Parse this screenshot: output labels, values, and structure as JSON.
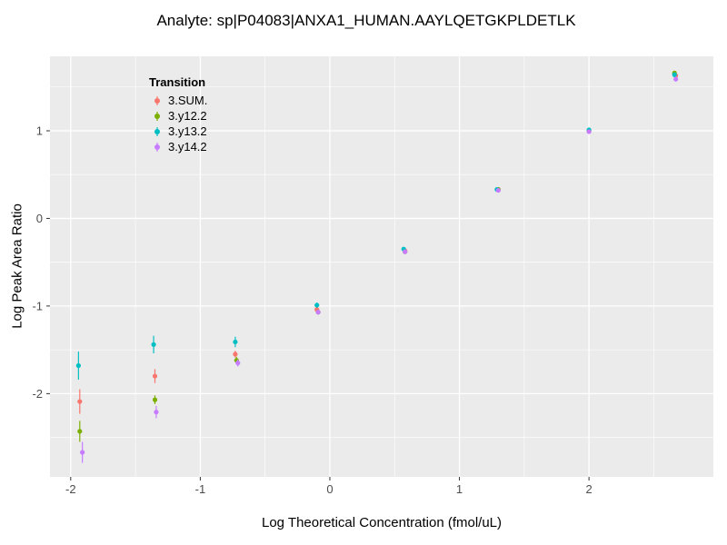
{
  "chart_data": {
    "type": "scatter",
    "title": "Analyte: sp|P04083|ANXA1_HUMAN.AAYLQETGKPLDETLK",
    "xlabel": "Log Theoretical Concentration (fmol/uL)",
    "ylabel": "Log Peak Area Ratio",
    "xlim": [
      -2.16,
      2.96
    ],
    "ylim": [
      -2.95,
      1.85
    ],
    "x_ticks": [
      -2,
      -1,
      0,
      1,
      2
    ],
    "y_ticks": [
      -2,
      -1,
      0,
      1
    ],
    "grid": true,
    "legend": {
      "title": "Transition",
      "position": "top-left-inside"
    },
    "colors": {
      "panel_bg": "#EBEBEB",
      "grid": "#FFFFFF",
      "tick_mark": "#333333",
      "tick_text": "#4D4D4D",
      "text": "#000000"
    },
    "series": [
      {
        "name": "3.SUM.",
        "color": "#F8766D",
        "points": [
          {
            "x": -1.93,
            "y": -2.09,
            "err": 0.14
          },
          {
            "x": -1.35,
            "y": -1.8,
            "err": 0.08
          },
          {
            "x": -0.73,
            "y": -1.55,
            "err": 0.04
          },
          {
            "x": -0.1,
            "y": -1.04,
            "err": 0.03
          },
          {
            "x": 0.58,
            "y": -0.37,
            "err": 0.02
          },
          {
            "x": 1.3,
            "y": 0.33,
            "err": 0.01
          },
          {
            "x": 2.0,
            "y": 1.0,
            "err": 0.01
          },
          {
            "x": 2.67,
            "y": 1.63,
            "err": 0.02
          }
        ]
      },
      {
        "name": "3.y12.2",
        "color": "#7CAE00",
        "points": [
          {
            "x": -1.93,
            "y": -2.43,
            "err": 0.12
          },
          {
            "x": -1.35,
            "y": -2.07,
            "err": 0.05
          },
          {
            "x": -0.72,
            "y": -1.62,
            "err": 0.04
          },
          {
            "x": -0.09,
            "y": -1.07,
            "err": 0.02
          },
          {
            "x": 0.58,
            "y": -0.38,
            "err": 0.02
          },
          {
            "x": 1.3,
            "y": 0.33,
            "err": 0.01
          },
          {
            "x": 2.0,
            "y": 1.0,
            "err": 0.01
          },
          {
            "x": 2.66,
            "y": 1.66,
            "err": 0.02
          }
        ]
      },
      {
        "name": "3.y13.2",
        "color": "#00BFC4",
        "points": [
          {
            "x": -1.94,
            "y": -1.68,
            "err": 0.16
          },
          {
            "x": -1.36,
            "y": -1.44,
            "err": 0.1
          },
          {
            "x": -0.73,
            "y": -1.41,
            "err": 0.06
          },
          {
            "x": -0.1,
            "y": -0.99,
            "err": 0.03
          },
          {
            "x": 0.57,
            "y": -0.35,
            "err": 0.02
          },
          {
            "x": 1.29,
            "y": 0.33,
            "err": 0.01
          },
          {
            "x": 2.0,
            "y": 1.01,
            "err": 0.01
          },
          {
            "x": 2.66,
            "y": 1.64,
            "err": 0.02
          }
        ]
      },
      {
        "name": "3.y14.2",
        "color": "#C77CFF",
        "points": [
          {
            "x": -1.91,
            "y": -2.67,
            "err": 0.12
          },
          {
            "x": -1.34,
            "y": -2.21,
            "err": 0.07
          },
          {
            "x": -0.71,
            "y": -1.65,
            "err": 0.04
          },
          {
            "x": -0.09,
            "y": -1.07,
            "err": 0.02
          },
          {
            "x": 0.58,
            "y": -0.38,
            "err": 0.02
          },
          {
            "x": 1.3,
            "y": 0.32,
            "err": 0.01
          },
          {
            "x": 2.0,
            "y": 0.99,
            "err": 0.01
          },
          {
            "x": 2.67,
            "y": 1.59,
            "err": 0.03
          }
        ]
      }
    ]
  }
}
